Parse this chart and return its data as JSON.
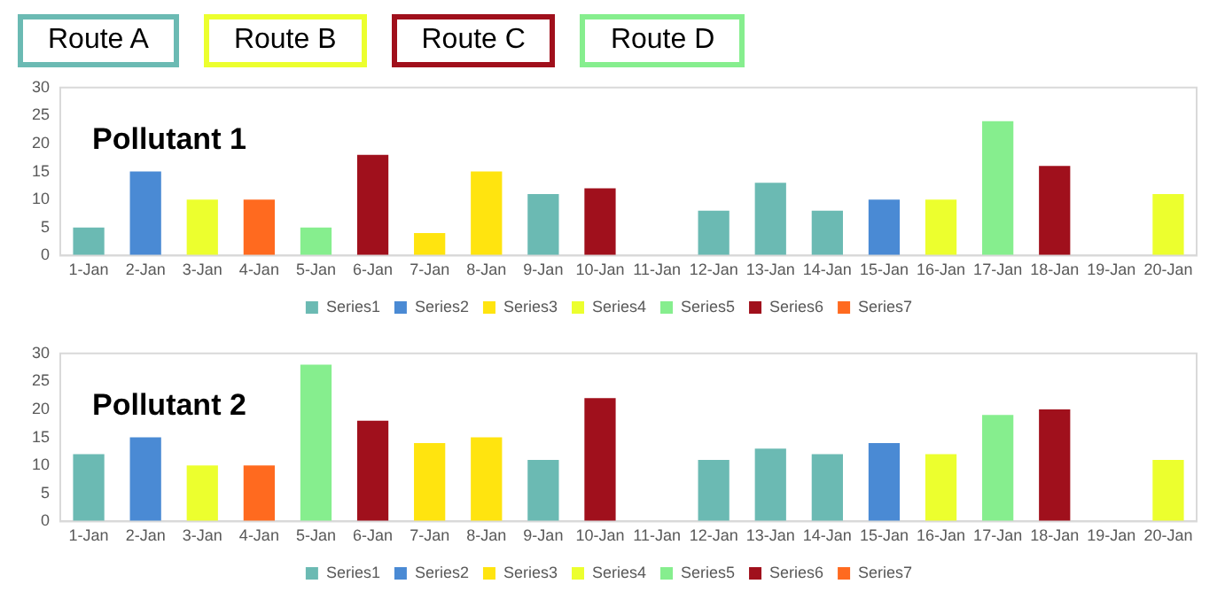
{
  "chart_data": [
    {
      "type": "other",
      "annotations": [
        "Route A",
        "Route B",
        "Route C",
        "Route D"
      ],
      "colors": [
        "#6bbab3",
        "#ecff2e",
        "#a0101c",
        "#86ee8e"
      ]
    },
    {
      "type": "bar",
      "title": "Pollutant 1",
      "stacked": true,
      "legend": "bottom",
      "grid": false,
      "categories": [
        "1-Jan",
        "2-Jan",
        "3-Jan",
        "4-Jan",
        "5-Jan",
        "6-Jan",
        "7-Jan",
        "8-Jan",
        "9-Jan",
        "10-Jan",
        "11-Jan",
        "12-Jan",
        "13-Jan",
        "14-Jan",
        "15-Jan",
        "16-Jan",
        "17-Jan",
        "18-Jan",
        "19-Jan",
        "20-Jan"
      ],
      "ylim": [
        0,
        30
      ],
      "yticks": [
        0,
        5,
        10,
        15,
        20,
        25,
        30
      ],
      "series": [
        {
          "name": "Series1",
          "color": "#6bbab3",
          "values": [
            5,
            null,
            null,
            null,
            null,
            null,
            null,
            null,
            11,
            null,
            null,
            8,
            13,
            8,
            null,
            null,
            null,
            null,
            null,
            null
          ]
        },
        {
          "name": "Series2",
          "color": "#4a8ad4",
          "values": [
            null,
            15,
            null,
            null,
            null,
            null,
            null,
            null,
            null,
            null,
            null,
            null,
            null,
            null,
            10,
            null,
            null,
            null,
            null,
            null
          ]
        },
        {
          "name": "Series3",
          "color": "#ffe40f",
          "values": [
            null,
            null,
            null,
            null,
            null,
            null,
            4,
            15,
            null,
            null,
            null,
            null,
            null,
            null,
            null,
            null,
            null,
            null,
            null,
            null
          ]
        },
        {
          "name": "Series4",
          "color": "#ecff2e",
          "values": [
            null,
            null,
            10,
            null,
            null,
            null,
            null,
            null,
            null,
            null,
            null,
            null,
            null,
            null,
            null,
            10,
            null,
            null,
            null,
            11
          ]
        },
        {
          "name": "Series5",
          "color": "#86ee8e",
          "values": [
            null,
            null,
            null,
            null,
            5,
            null,
            null,
            null,
            null,
            null,
            null,
            null,
            null,
            null,
            null,
            null,
            24,
            null,
            null,
            null
          ]
        },
        {
          "name": "Series6",
          "color": "#a0101c",
          "values": [
            null,
            null,
            null,
            null,
            null,
            18,
            null,
            null,
            null,
            12,
            null,
            null,
            null,
            null,
            null,
            null,
            null,
            16,
            null,
            null
          ]
        },
        {
          "name": "Series7",
          "color": "#ff6a1f",
          "values": [
            null,
            null,
            null,
            10,
            null,
            null,
            null,
            null,
            null,
            null,
            null,
            null,
            null,
            null,
            null,
            null,
            null,
            null,
            null,
            null
          ]
        }
      ]
    },
    {
      "type": "bar",
      "title": "Pollutant 2",
      "stacked": true,
      "legend": "bottom",
      "grid": false,
      "categories": [
        "1-Jan",
        "2-Jan",
        "3-Jan",
        "4-Jan",
        "5-Jan",
        "6-Jan",
        "7-Jan",
        "8-Jan",
        "9-Jan",
        "10-Jan",
        "11-Jan",
        "12-Jan",
        "13-Jan",
        "14-Jan",
        "15-Jan",
        "16-Jan",
        "17-Jan",
        "18-Jan",
        "19-Jan",
        "20-Jan"
      ],
      "ylim": [
        0,
        30
      ],
      "yticks": [
        0,
        5,
        10,
        15,
        20,
        25,
        30
      ],
      "series": [
        {
          "name": "Series1",
          "color": "#6bbab3",
          "values": [
            12,
            null,
            null,
            null,
            null,
            null,
            null,
            null,
            11,
            null,
            null,
            11,
            13,
            12,
            null,
            null,
            null,
            null,
            null,
            null
          ]
        },
        {
          "name": "Series2",
          "color": "#4a8ad4",
          "values": [
            null,
            15,
            null,
            null,
            null,
            null,
            null,
            null,
            null,
            null,
            null,
            null,
            null,
            null,
            14,
            null,
            null,
            null,
            null,
            null
          ]
        },
        {
          "name": "Series3",
          "color": "#ffe40f",
          "values": [
            null,
            null,
            null,
            null,
            null,
            null,
            14,
            15,
            null,
            null,
            null,
            null,
            null,
            null,
            null,
            null,
            null,
            null,
            null,
            null
          ]
        },
        {
          "name": "Series4",
          "color": "#ecff2e",
          "values": [
            null,
            null,
            10,
            null,
            null,
            null,
            null,
            null,
            null,
            null,
            null,
            null,
            null,
            null,
            null,
            12,
            null,
            null,
            null,
            11
          ]
        },
        {
          "name": "Series5",
          "color": "#86ee8e",
          "values": [
            null,
            null,
            null,
            null,
            28,
            null,
            null,
            null,
            null,
            null,
            null,
            null,
            null,
            null,
            null,
            null,
            19,
            null,
            null,
            null
          ]
        },
        {
          "name": "Series6",
          "color": "#a0101c",
          "values": [
            null,
            null,
            null,
            null,
            null,
            18,
            null,
            null,
            null,
            22,
            null,
            null,
            null,
            null,
            null,
            null,
            null,
            20,
            null,
            null
          ]
        },
        {
          "name": "Series7",
          "color": "#ff6a1f",
          "values": [
            null,
            null,
            null,
            10,
            null,
            null,
            null,
            null,
            null,
            null,
            null,
            null,
            null,
            null,
            null,
            null,
            null,
            null,
            null,
            null
          ]
        }
      ]
    }
  ]
}
